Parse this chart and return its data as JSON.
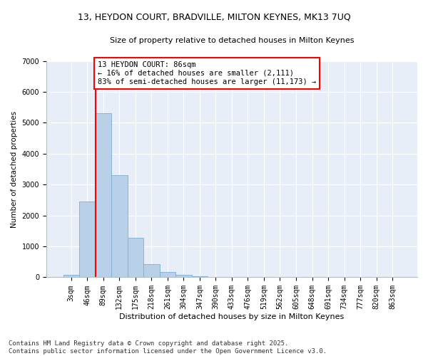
{
  "title_line1": "13, HEYDON COURT, BRADVILLE, MILTON KEYNES, MK13 7UQ",
  "title_line2": "Size of property relative to detached houses in Milton Keynes",
  "xlabel": "Distribution of detached houses by size in Milton Keynes",
  "ylabel": "Number of detached properties",
  "categories": [
    "3sqm",
    "46sqm",
    "89sqm",
    "132sqm",
    "175sqm",
    "218sqm",
    "261sqm",
    "304sqm",
    "347sqm",
    "390sqm",
    "433sqm",
    "476sqm",
    "519sqm",
    "562sqm",
    "605sqm",
    "648sqm",
    "691sqm",
    "734sqm",
    "777sqm",
    "820sqm",
    "863sqm"
  ],
  "values": [
    80,
    2450,
    5300,
    3300,
    1280,
    430,
    170,
    80,
    40,
    15,
    5,
    2,
    1,
    0,
    0,
    0,
    0,
    0,
    0,
    0,
    0
  ],
  "bar_color": "#b8d0e8",
  "bar_edge_color": "#7aafd4",
  "vline_x_index": 1.5,
  "vline_color": "red",
  "annotation_text": "13 HEYDON COURT: 86sqm\n← 16% of detached houses are smaller (2,111)\n83% of semi-detached houses are larger (11,173) →",
  "annotation_box_color": "white",
  "annotation_box_edge": "red",
  "ylim": [
    0,
    7000
  ],
  "yticks": [
    0,
    1000,
    2000,
    3000,
    4000,
    5000,
    6000,
    7000
  ],
  "background_color": "#e8eef8",
  "footer_text": "Contains HM Land Registry data © Crown copyright and database right 2025.\nContains public sector information licensed under the Open Government Licence v3.0.",
  "title_fontsize": 9,
  "subtitle_fontsize": 8,
  "axis_label_fontsize": 8,
  "tick_fontsize": 7,
  "annotation_fontsize": 7.5,
  "ylabel_fontsize": 7.5
}
